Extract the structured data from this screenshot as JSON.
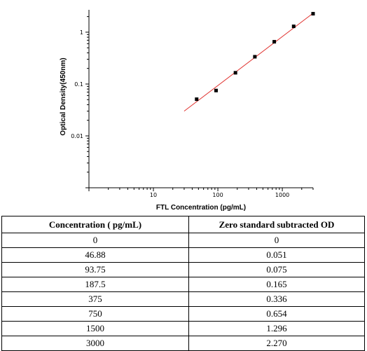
{
  "chart_data": {
    "type": "scatter",
    "xlabel": "FTL Concentration (pg/mL)",
    "ylabel": "Optical Density(450nm)",
    "x_scale": "log",
    "y_scale": "log",
    "xlim": [
      1,
      3000
    ],
    "ylim": [
      0.001,
      2.7
    ],
    "x_ticks": [
      10,
      100,
      1000
    ],
    "x_tick_labels": [
      "10",
      "100",
      "1000"
    ],
    "y_ticks": [
      0.01,
      0.1,
      1
    ],
    "y_tick_labels": [
      "0.01",
      "0.1",
      "1"
    ],
    "grid": false,
    "points": [
      {
        "x": 46.88,
        "y": 0.051
      },
      {
        "x": 93.75,
        "y": 0.075
      },
      {
        "x": 187.5,
        "y": 0.165
      },
      {
        "x": 375,
        "y": 0.336
      },
      {
        "x": 750,
        "y": 0.654
      },
      {
        "x": 1500,
        "y": 1.296
      },
      {
        "x": 3000,
        "y": 2.27
      }
    ],
    "fit_line": {
      "x": [
        30,
        3000
      ],
      "y": [
        0.03,
        2.32
      ],
      "color": "#e0322f"
    },
    "marker_color": "#000000"
  },
  "table": {
    "headers": [
      "Concentration ( pg/mL)",
      "Zero standard subtracted OD"
    ],
    "rows": [
      [
        "0",
        "0"
      ],
      [
        "46.88",
        "0.051"
      ],
      [
        "93.75",
        "0.075"
      ],
      [
        "187.5",
        "0.165"
      ],
      [
        "375",
        "0.336"
      ],
      [
        "750",
        "0.654"
      ],
      [
        "1500",
        "1.296"
      ],
      [
        "3000",
        "2.270"
      ]
    ]
  }
}
